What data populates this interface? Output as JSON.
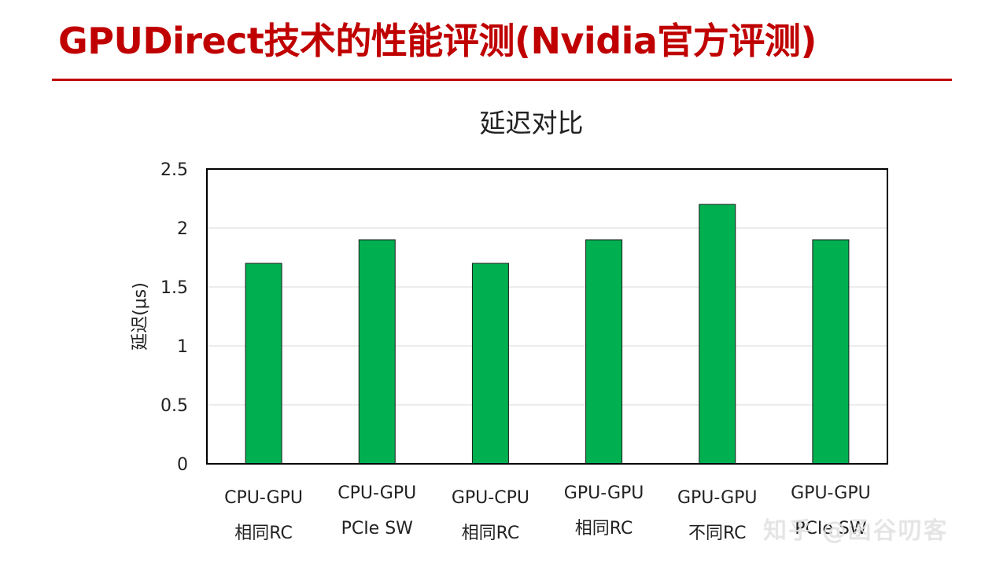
{
  "slide": {
    "title": "GPUDirect技术的性能评测(Nvidia官方评测)",
    "watermark": "知乎 @函谷叨客"
  },
  "colors": {
    "title": "#c00000",
    "bar": "#00b050",
    "gridline": "#d9d9d9",
    "frame": "#000000"
  },
  "chart_data": {
    "type": "bar",
    "title": "延迟对比",
    "xlabel": "",
    "ylabel": "延迟(μs)",
    "ylim": [
      0,
      2.5
    ],
    "yticks": [
      0,
      0.5,
      1,
      1.5,
      2,
      2.5
    ],
    "ytick_labels": [
      "0",
      "0.5",
      "1",
      "1.5",
      "2",
      "2.5"
    ],
    "grid": true,
    "legend": "none",
    "categories": [
      [
        "CPU-GPU",
        "相同RC"
      ],
      [
        "CPU-GPU",
        "PCIe SW"
      ],
      [
        "GPU-CPU",
        "相同RC"
      ],
      [
        "GPU-GPU",
        "相同RC"
      ],
      [
        "GPU-GPU",
        "不同RC"
      ],
      [
        "GPU-GPU",
        "PCIe SW"
      ]
    ],
    "values": [
      1.7,
      1.9,
      1.7,
      1.9,
      2.2,
      1.9
    ]
  }
}
